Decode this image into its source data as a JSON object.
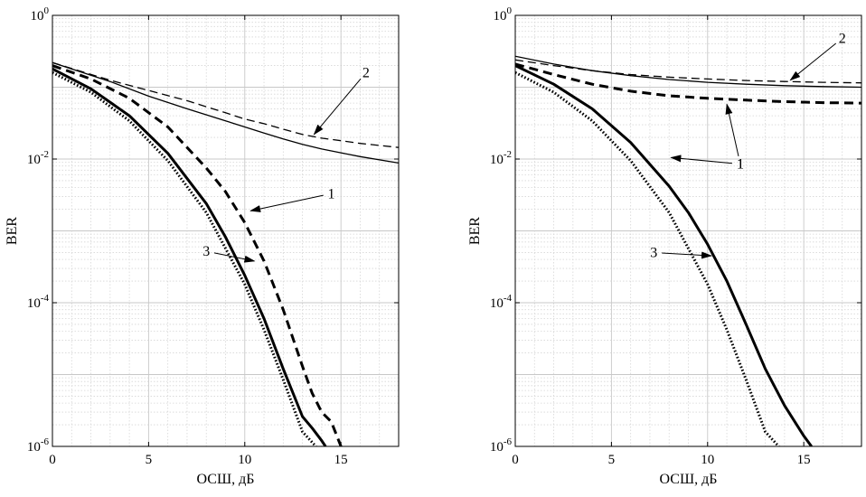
{
  "chart_data": [
    {
      "type": "line",
      "xlabel": "ОСШ, дБ",
      "ylabel": "BER",
      "xlim": [
        0,
        18
      ],
      "ylim": [
        1e-06,
        1
      ],
      "yscale": "log",
      "grid": true,
      "x_ticks": [
        "0",
        "5",
        "10",
        "15"
      ],
      "y_ticks": [
        {
          "base": "10",
          "exp": "0"
        },
        {
          "base": "10",
          "exp": "-2"
        },
        {
          "base": "10",
          "exp": "-4"
        },
        {
          "base": "10",
          "exp": "-6"
        }
      ],
      "series": [
        {
          "style": "dashed-thin",
          "x": [
            0,
            3,
            5,
            7,
            9,
            10,
            11,
            12,
            13,
            14,
            15,
            16,
            18
          ],
          "y": [
            0.22,
            0.125,
            0.09,
            0.065,
            0.044,
            0.036,
            0.031,
            0.026,
            0.022,
            0.0195,
            0.018,
            0.0165,
            0.0145
          ]
        },
        {
          "style": "solid-thin",
          "x": [
            0,
            3,
            5,
            7,
            9,
            10,
            11,
            12,
            13,
            14,
            15,
            16,
            18
          ],
          "y": [
            0.22,
            0.12,
            0.075,
            0.05,
            0.034,
            0.028,
            0.023,
            0.019,
            0.016,
            0.0138,
            0.0122,
            0.0108,
            0.0088
          ]
        },
        {
          "style": "dashed-thick",
          "x": [
            0,
            2,
            4,
            6,
            8,
            9,
            10,
            11,
            12,
            13,
            13.5,
            14,
            14.5,
            15
          ],
          "y": [
            0.2,
            0.13,
            0.07,
            0.028,
            0.0075,
            0.0035,
            0.0013,
            0.00038,
            8e-05,
            1.3e-05,
            5.5e-06,
            3e-06,
            2.2e-06,
            1e-06
          ]
        },
        {
          "style": "solid-thick",
          "x": [
            0,
            2,
            4,
            6,
            8,
            9,
            10,
            11,
            12,
            13,
            13.5,
            14,
            14.2
          ],
          "y": [
            0.18,
            0.095,
            0.04,
            0.012,
            0.0024,
            0.00082,
            0.00024,
            6e-05,
            1.2e-05,
            2.6e-06,
            1.8e-06,
            1.2e-06,
            1e-06
          ]
        },
        {
          "style": "dotted-thick",
          "x": [
            0,
            2,
            4,
            6,
            8,
            10,
            11,
            12,
            13,
            13.7
          ],
          "y": [
            0.16,
            0.085,
            0.034,
            0.0095,
            0.0018,
            0.00018,
            4.2e-05,
            8.5e-06,
            1.6e-06,
            1e-06
          ]
        }
      ],
      "annotations": [
        {
          "text": "2",
          "tx": 16.3,
          "ty": 0.16,
          "ax": 13.6,
          "ay": 0.022
        },
        {
          "text": "1",
          "tx": 14.5,
          "ty": 0.0033,
          "ax": 10.3,
          "ay": 0.0019
        },
        {
          "text": "3",
          "tx": 8.0,
          "ty": 0.00052,
          "ax": 10.5,
          "ay": 0.00038
        }
      ]
    },
    {
      "type": "line",
      "xlabel": "ОСШ, дБ",
      "ylabel": "BER",
      "xlim": [
        0,
        18
      ],
      "ylim": [
        1e-06,
        1
      ],
      "yscale": "log",
      "grid": true,
      "x_ticks": [
        "0",
        "5",
        "10",
        "15"
      ],
      "y_ticks": [
        {
          "base": "10",
          "exp": "0"
        },
        {
          "base": "10",
          "exp": "-2"
        },
        {
          "base": "10",
          "exp": "-4"
        },
        {
          "base": "10",
          "exp": "-6"
        }
      ],
      "series": [
        {
          "style": "dashed-thin",
          "x": [
            0,
            2,
            4,
            6,
            8,
            10,
            12,
            14,
            16,
            18
          ],
          "y": [
            0.24,
            0.2,
            0.17,
            0.15,
            0.138,
            0.13,
            0.124,
            0.12,
            0.117,
            0.115
          ]
        },
        {
          "style": "solid-thin",
          "x": [
            0,
            2,
            4,
            6,
            8,
            10,
            12,
            14,
            16,
            18
          ],
          "y": [
            0.27,
            0.21,
            0.17,
            0.145,
            0.128,
            0.117,
            0.11,
            0.105,
            0.102,
            0.1
          ]
        },
        {
          "style": "dashed-thick",
          "x": [
            0,
            2,
            4,
            6,
            8,
            10,
            12,
            14,
            16,
            18
          ],
          "y": [
            0.21,
            0.15,
            0.11,
            0.088,
            0.076,
            0.07,
            0.066,
            0.063,
            0.061,
            0.06
          ]
        },
        {
          "style": "solid-thick",
          "x": [
            0,
            2,
            4,
            6,
            8,
            9,
            10,
            11,
            12,
            13,
            14,
            15,
            15.4
          ],
          "y": [
            0.2,
            0.11,
            0.05,
            0.017,
            0.0042,
            0.0018,
            0.00065,
            0.0002,
            5e-05,
            1.2e-05,
            3.7e-06,
            1.4e-06,
            1e-06
          ]
        },
        {
          "style": "dotted-thick",
          "x": [
            0,
            2,
            4,
            6,
            8,
            10,
            11,
            12,
            13,
            13.7
          ],
          "y": [
            0.16,
            0.085,
            0.034,
            0.0095,
            0.0018,
            0.00018,
            4.2e-05,
            8.5e-06,
            1.6e-06,
            1e-06
          ]
        }
      ],
      "annotations": [
        {
          "text": "2",
          "tx": 17.0,
          "ty": 0.48,
          "ax": 14.3,
          "ay": 0.125
        },
        {
          "text": "1",
          "tx": 11.7,
          "ty": 0.0085,
          "ax": 11.0,
          "ay": 0.058
        },
        {
          "text": "1",
          "tx": 11.7,
          "ty": 0.0085,
          "ax": 8.1,
          "ay": 0.0105
        },
        {
          "text": "3",
          "tx": 7.2,
          "ty": 0.0005,
          "ax": 10.2,
          "ay": 0.00045
        }
      ]
    }
  ]
}
